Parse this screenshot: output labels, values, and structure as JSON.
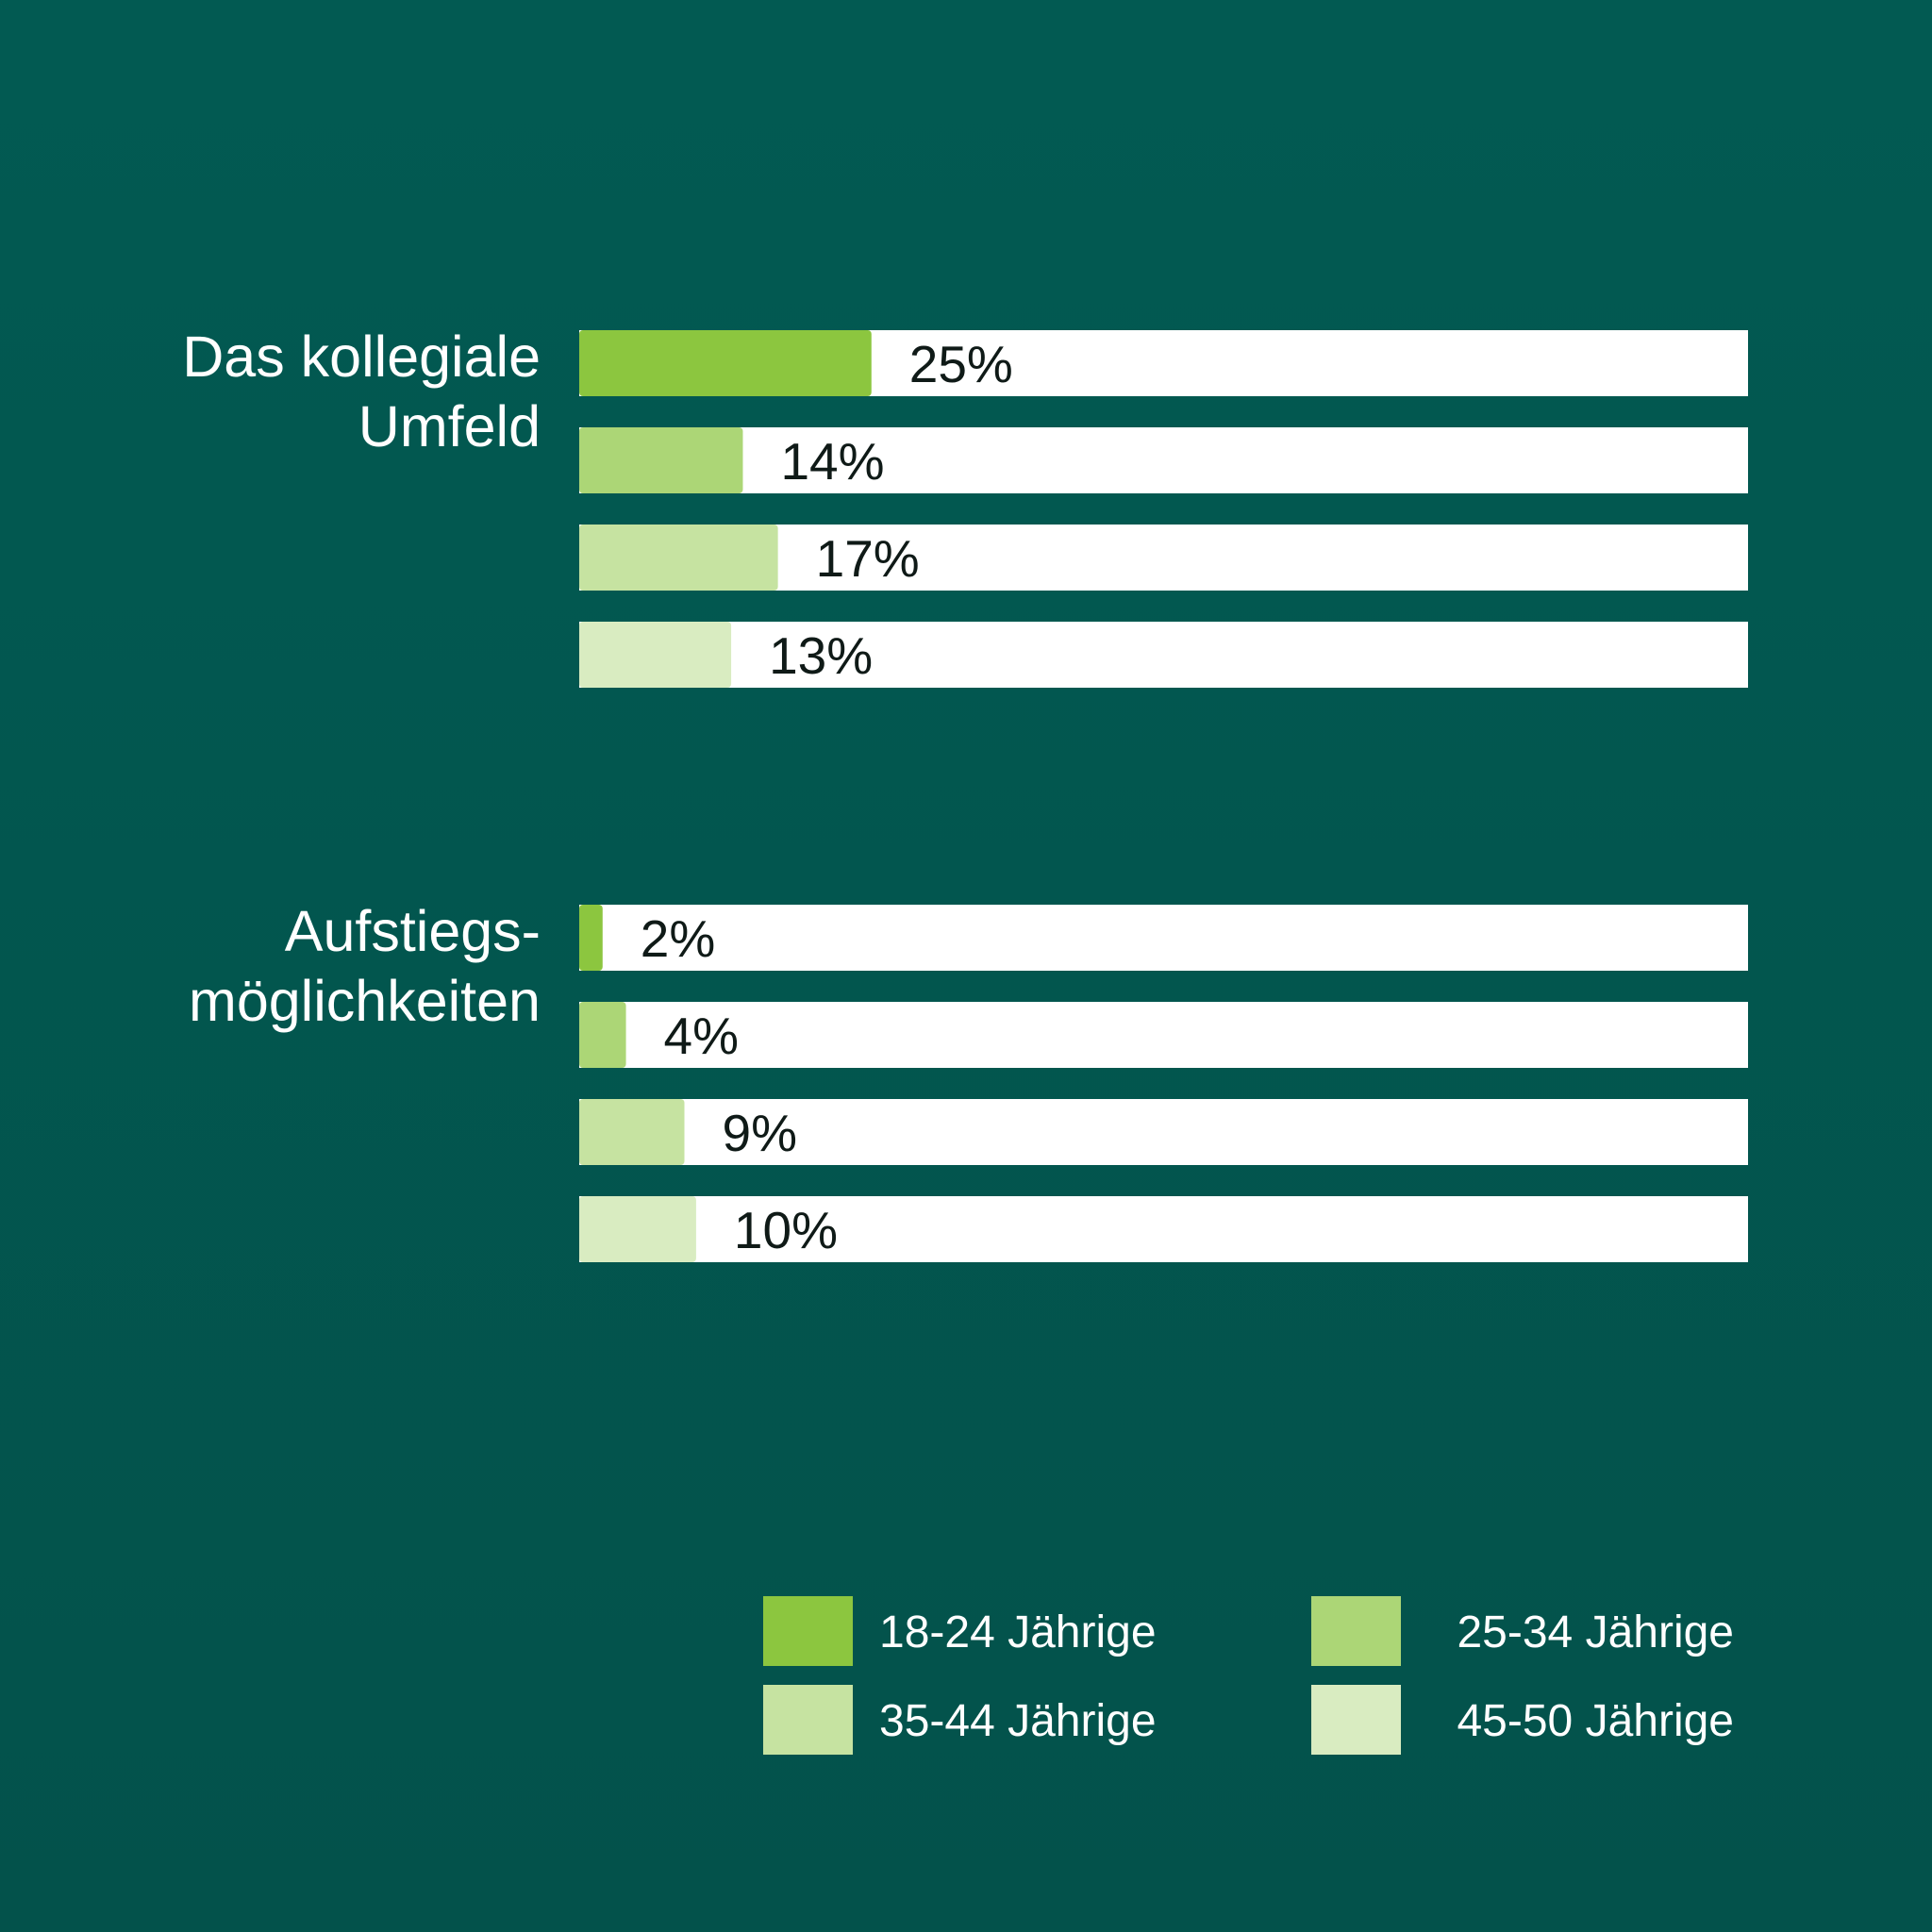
{
  "chart_data": {
    "type": "bar",
    "orientation": "horizontal",
    "value_max": 100,
    "unit": "%",
    "groups": [
      {
        "label_lines": [
          "Das kollegiale",
          "Umfeld"
        ],
        "values": [
          25,
          14,
          17,
          13
        ],
        "value_labels": [
          "25%",
          "14%",
          "17%",
          "13%"
        ]
      },
      {
        "label_lines": [
          "Aufstiegs-",
          "möglichkeiten"
        ],
        "values": [
          2,
          4,
          9,
          10
        ],
        "value_labels": [
          "2%",
          "4%",
          "9%",
          "10%"
        ]
      }
    ],
    "series": [
      {
        "name": "18-24 Jährige",
        "color": "#8cc63f"
      },
      {
        "name": "25-34 Jährige",
        "color": "#acd676"
      },
      {
        "name": "35-44 Jährige",
        "color": "#c6e3a1"
      },
      {
        "name": "45-50 Jährige",
        "color": "#d9ecc1"
      }
    ],
    "legend_position": "bottom-right",
    "grid": false
  },
  "colors": {
    "background": "#02564f",
    "track": "#ffffff",
    "value_text": "#0f1a17",
    "label_text": "#ffffff"
  }
}
